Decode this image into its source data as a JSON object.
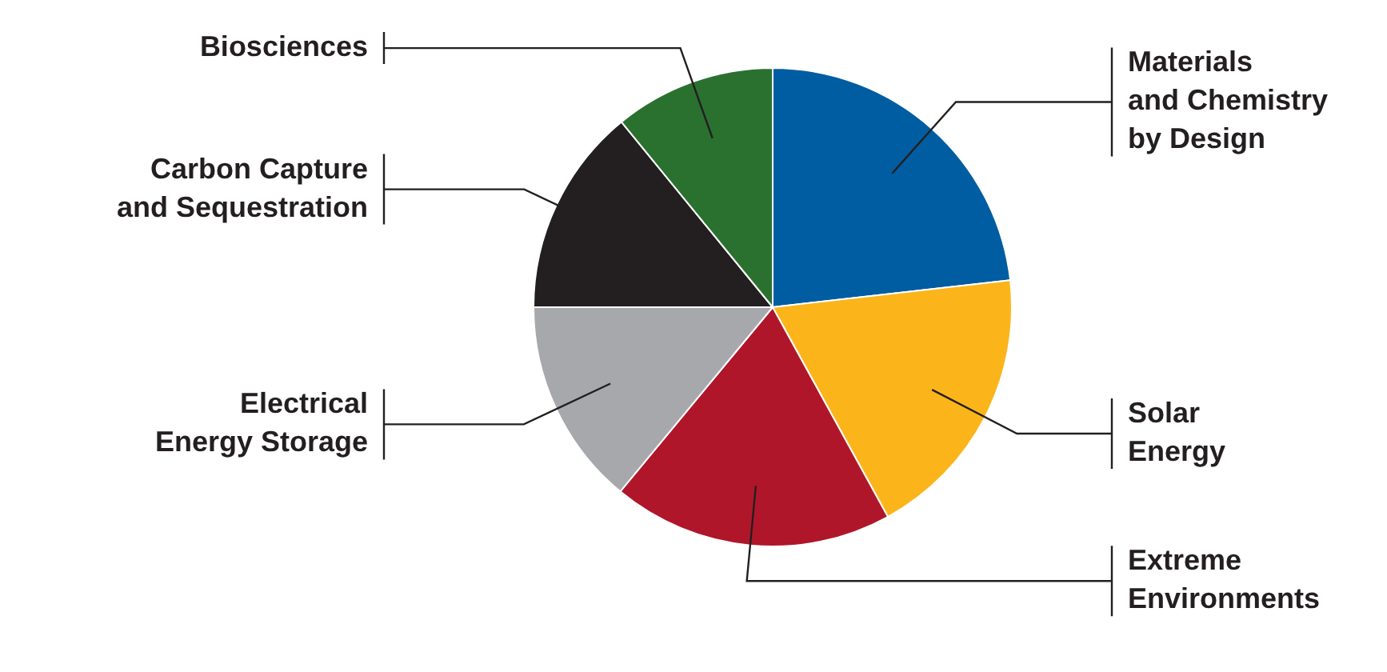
{
  "chart_data": {
    "type": "pie",
    "categories": [
      "Materials\nand Chemistry\nby Design",
      "Solar\nEnergy",
      "Extreme\nEnvironments",
      "Electrical\nEnergy Storage",
      "Carbon Capture\nand Sequestration",
      "Biosciences"
    ],
    "values": [
      23.2,
      18.8,
      19,
      14,
      14.1,
      10.9
    ],
    "colors": [
      "#005da1",
      "#fbb51b",
      "#b0162a",
      "#a6a8ab",
      "#231f20",
      "#2a7130"
    ]
  }
}
